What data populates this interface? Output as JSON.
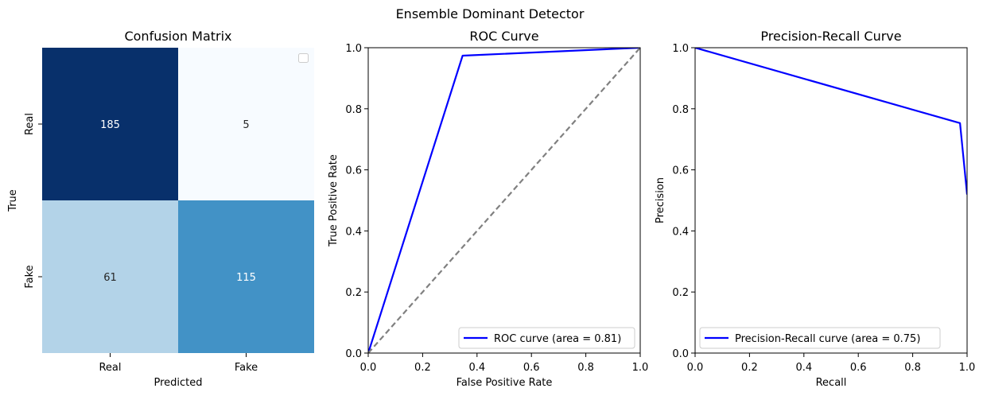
{
  "figure": {
    "title": "Ensemble Dominant Detector"
  },
  "chart_data": [
    {
      "type": "heatmap",
      "title": "Confusion Matrix",
      "xlabel": "Predicted",
      "ylabel": "True",
      "x_categories": [
        "Real",
        "Fake"
      ],
      "y_categories": [
        "Real",
        "Fake"
      ],
      "values": [
        [
          185,
          5
        ],
        [
          61,
          115
        ]
      ],
      "colormap": "Blues",
      "colors": {
        "cell_0_0": "#08306b",
        "cell_0_1": "#f7fbff",
        "cell_1_0": "#b3d3e8",
        "cell_1_1": "#4292c6"
      },
      "text_colors": {
        "cell_0_0": "#ffffff",
        "cell_0_1": "#262626",
        "cell_1_0": "#262626",
        "cell_1_1": "#ffffff"
      },
      "legend": {
        "placement": "top-right",
        "entries": []
      }
    },
    {
      "type": "line",
      "title": "ROC Curve",
      "xlabel": "False Positive Rate",
      "ylabel": "True Positive Rate",
      "xlim": [
        0.0,
        1.0
      ],
      "ylim": [
        0.0,
        1.0
      ],
      "xticks": [
        "0.0",
        "0.2",
        "0.4",
        "0.6",
        "0.8",
        "1.0"
      ],
      "yticks": [
        "0.0",
        "0.2",
        "0.4",
        "0.6",
        "0.8",
        "1.0"
      ],
      "series": [
        {
          "name": "ROC curve (area = 0.81)",
          "color": "#0000ff",
          "style": "solid",
          "x": [
            0.0,
            0.347,
            1.0
          ],
          "y": [
            0.0,
            0.974,
            1.0
          ]
        },
        {
          "color": "#808080",
          "style": "dashed",
          "x": [
            0.0,
            1.0
          ],
          "y": [
            0.0,
            1.0
          ]
        }
      ],
      "legend": {
        "placement": "lower-right"
      }
    },
    {
      "type": "line",
      "title": "Precision-Recall Curve",
      "xlabel": "Recall",
      "ylabel": "Precision",
      "xlim": [
        0.0,
        1.0
      ],
      "ylim": [
        0.0,
        1.0
      ],
      "xticks": [
        "0.0",
        "0.2",
        "0.4",
        "0.6",
        "0.8",
        "1.0"
      ],
      "yticks": [
        "0.0",
        "0.2",
        "0.4",
        "0.6",
        "0.8",
        "1.0"
      ],
      "series": [
        {
          "name": "Precision-Recall curve (area = 0.75)",
          "color": "#0000ff",
          "style": "solid",
          "x": [
            0.0,
            0.974,
            1.0
          ],
          "y": [
            1.0,
            0.753,
            0.519
          ]
        }
      ],
      "legend": {
        "placement": "lower-left"
      }
    }
  ]
}
